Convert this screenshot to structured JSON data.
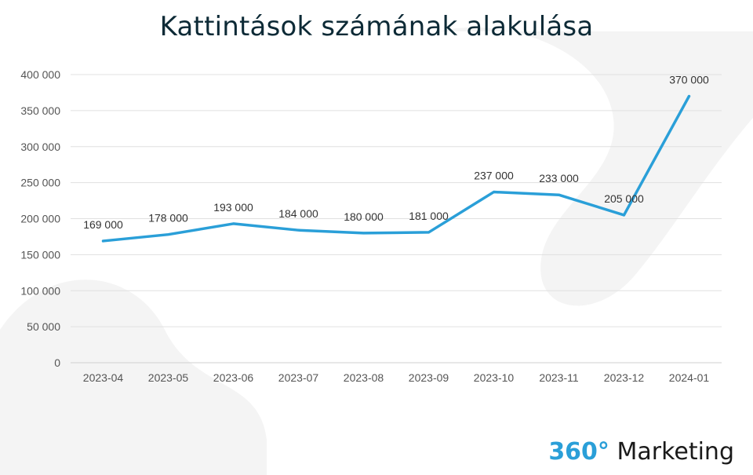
{
  "title": "Kattintások számának alakulása",
  "colors": {
    "line": "#2a9fd8",
    "grid": "#e0e0e0",
    "accent": "#2a9fd8"
  },
  "logo": {
    "number": "360°",
    "word": " Marketing"
  },
  "chart_data": {
    "type": "line",
    "title": "Kattintások számának alakulása",
    "categories": [
      "2023-04",
      "2023-05",
      "2023-06",
      "2023-07",
      "2023-08",
      "2023-09",
      "2023-10",
      "2023-11",
      "2023-12",
      "2024-01"
    ],
    "values": [
      169000,
      178000,
      193000,
      184000,
      180000,
      181000,
      237000,
      233000,
      205000,
      370000
    ],
    "data_labels": [
      "169 000",
      "178 000",
      "193 000",
      "184 000",
      "180 000",
      "181 000",
      "237 000",
      "233 000",
      "205 000",
      "370 000"
    ],
    "y_ticks": [
      "0",
      "50 000",
      "100 000",
      "150 000",
      "200 000",
      "250 000",
      "300 000",
      "350 000",
      "400 000"
    ],
    "ylim": [
      0,
      400000
    ],
    "xlabel": "",
    "ylabel": "",
    "grid": true,
    "legend": "none"
  }
}
